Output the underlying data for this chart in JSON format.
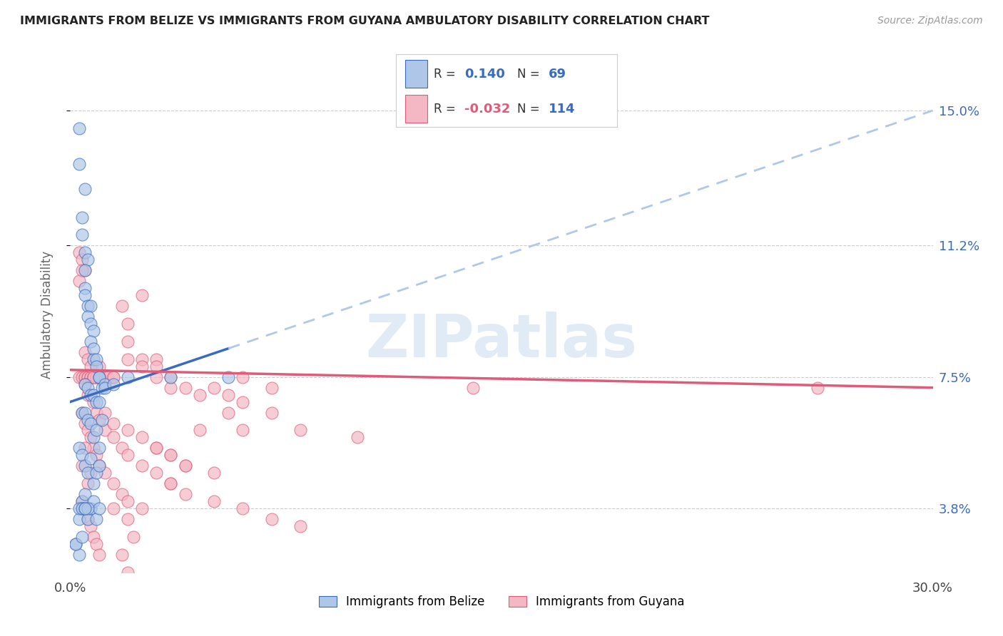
{
  "title": "IMMIGRANTS FROM BELIZE VS IMMIGRANTS FROM GUYANA AMBULATORY DISABILITY CORRELATION CHART",
  "source": "Source: ZipAtlas.com",
  "ylabel": "Ambulatory Disability",
  "ytick_labels": [
    "3.8%",
    "7.5%",
    "11.2%",
    "15.0%"
  ],
  "ytick_values": [
    3.8,
    7.5,
    11.2,
    15.0
  ],
  "xmin": 0.0,
  "xmax": 30.0,
  "ymin": 2.0,
  "ymax": 16.5,
  "color_belize": "#aec6e8",
  "color_guyana": "#f4b8c4",
  "color_belize_line": "#3a6bbf",
  "color_guyana_line": "#e05a7a",
  "color_dashed_line": "#b0c8e8",
  "belize_line_x0": 0.0,
  "belize_line_y0": 6.8,
  "belize_line_x1": 30.0,
  "belize_line_y1": 15.0,
  "belize_solid_x1": 5.5,
  "guyana_line_x0": 0.0,
  "guyana_line_y0": 7.7,
  "guyana_line_x1": 30.0,
  "guyana_line_y1": 7.2,
  "belize_scatter_x": [
    0.3,
    0.3,
    0.5,
    0.4,
    0.4,
    0.5,
    0.6,
    0.5,
    0.5,
    0.5,
    0.6,
    0.7,
    0.6,
    0.7,
    0.8,
    0.7,
    0.8,
    0.8,
    0.9,
    0.9,
    1.0,
    1.0,
    0.5,
    0.6,
    0.7,
    0.8,
    0.9,
    1.0,
    1.1,
    1.2,
    0.4,
    0.5,
    0.6,
    0.7,
    0.8,
    0.9,
    1.0,
    1.2,
    1.5,
    2.0,
    0.3,
    0.4,
    0.5,
    0.6,
    0.7,
    0.8,
    0.9,
    1.0,
    1.1,
    0.4,
    0.3,
    0.5,
    0.4,
    0.6,
    0.7,
    0.8,
    0.9,
    1.0,
    3.5,
    5.5,
    0.3,
    0.4,
    0.5,
    0.6,
    0.2,
    0.3,
    0.5,
    0.2,
    0.4
  ],
  "belize_scatter_y": [
    14.5,
    13.5,
    12.8,
    12.0,
    11.5,
    11.0,
    10.8,
    10.5,
    10.0,
    9.8,
    9.5,
    9.5,
    9.2,
    9.0,
    8.8,
    8.5,
    8.3,
    8.0,
    8.0,
    7.8,
    7.5,
    7.5,
    7.3,
    7.2,
    7.0,
    7.0,
    6.8,
    6.8,
    7.2,
    7.3,
    6.5,
    6.5,
    6.3,
    6.2,
    5.8,
    6.0,
    5.5,
    7.2,
    7.3,
    7.5,
    5.5,
    5.3,
    5.0,
    4.8,
    5.2,
    4.5,
    4.8,
    5.0,
    6.3,
    4.0,
    3.5,
    4.2,
    3.8,
    3.5,
    3.8,
    4.0,
    3.5,
    3.8,
    7.5,
    7.5,
    3.8,
    3.8,
    3.8,
    3.8,
    2.8,
    2.5,
    3.8,
    2.8,
    3.0
  ],
  "guyana_scatter_x": [
    0.3,
    0.4,
    0.5,
    0.5,
    0.6,
    0.6,
    0.7,
    0.7,
    0.8,
    0.8,
    0.9,
    0.9,
    1.0,
    1.0,
    1.1,
    1.2,
    1.2,
    1.3,
    1.5,
    1.5,
    1.8,
    2.0,
    2.0,
    2.5,
    2.5,
    3.0,
    3.0,
    3.5,
    4.0,
    4.5,
    5.0,
    5.5,
    6.0,
    7.0,
    8.0,
    10.0,
    14.0,
    0.4,
    0.5,
    0.6,
    0.7,
    0.8,
    0.9,
    1.0,
    1.2,
    1.5,
    1.8,
    2.0,
    2.5,
    3.0,
    3.5,
    4.0,
    5.0,
    6.0,
    7.0,
    1.0,
    0.5,
    0.6,
    0.8,
    0.9,
    1.0,
    1.2,
    1.5,
    1.8,
    2.0,
    2.5,
    3.0,
    3.5,
    4.0,
    5.0,
    6.0,
    7.0,
    8.0,
    0.4,
    0.5,
    0.6,
    0.7,
    0.8,
    0.9,
    1.0,
    1.2,
    1.5,
    2.0,
    2.5,
    3.0,
    3.5,
    4.0,
    0.5,
    0.6,
    0.7,
    0.8,
    0.3,
    0.4,
    0.5,
    6.0,
    3.5,
    1.5,
    2.0,
    4.5,
    5.5,
    26.0,
    0.3,
    0.4,
    2.0,
    2.5,
    3.0,
    3.5,
    2.0,
    1.8,
    2.2,
    0.6,
    0.7,
    0.5,
    0.4
  ],
  "guyana_scatter_y": [
    7.5,
    7.5,
    7.5,
    7.5,
    7.5,
    7.5,
    7.5,
    7.5,
    7.5,
    7.5,
    7.5,
    7.5,
    7.5,
    7.5,
    7.5,
    7.5,
    7.5,
    7.5,
    7.5,
    7.5,
    9.5,
    9.0,
    8.5,
    8.0,
    9.8,
    8.0,
    7.8,
    7.5,
    7.2,
    7.0,
    7.2,
    7.0,
    6.8,
    6.5,
    6.0,
    5.8,
    7.2,
    6.5,
    6.2,
    6.0,
    5.8,
    5.5,
    5.3,
    5.0,
    4.8,
    4.5,
    4.2,
    4.0,
    3.8,
    5.5,
    5.3,
    5.0,
    4.8,
    7.5,
    7.2,
    7.8,
    7.3,
    7.0,
    6.8,
    6.5,
    6.3,
    6.0,
    5.8,
    5.5,
    5.3,
    5.0,
    4.8,
    4.5,
    4.2,
    4.0,
    3.8,
    3.5,
    3.3,
    4.0,
    3.8,
    3.5,
    3.3,
    3.0,
    2.8,
    2.5,
    6.5,
    6.2,
    6.0,
    5.8,
    5.5,
    5.3,
    5.0,
    8.2,
    8.0,
    7.8,
    7.5,
    11.0,
    10.8,
    10.5,
    6.0,
    4.5,
    3.8,
    3.5,
    6.0,
    6.5,
    7.2,
    10.2,
    10.5,
    8.0,
    7.8,
    7.5,
    7.2,
    2.0,
    2.5,
    3.0,
    4.5,
    4.8,
    5.5,
    5.0
  ]
}
